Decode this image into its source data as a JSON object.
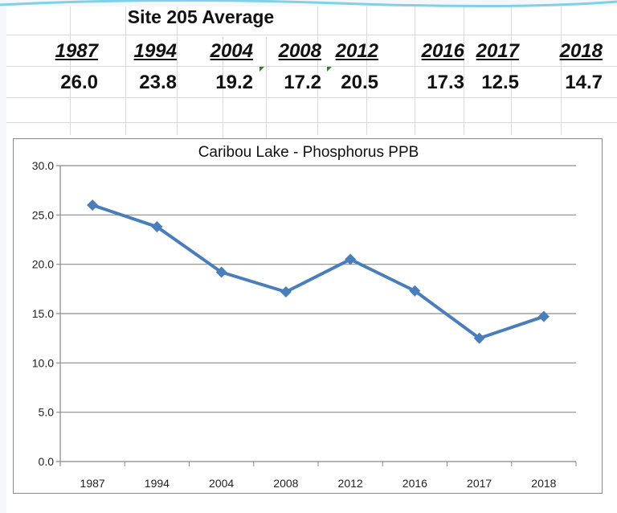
{
  "table": {
    "title": "Site 205 Average",
    "years": [
      "1987",
      "1994",
      "2004",
      "2008",
      "2012",
      "2016",
      "2017",
      "2018"
    ],
    "values": [
      "26.0",
      "23.8",
      "19.2",
      "17.2",
      "20.5",
      "17.3",
      "12.5",
      "14.7"
    ]
  },
  "chart_data": {
    "type": "line",
    "title": "Caribou Lake - Phosphorus PPB",
    "categories": [
      "1987",
      "1994",
      "2004",
      "2008",
      "2012",
      "2016",
      "2017",
      "2018"
    ],
    "values": [
      26.0,
      23.8,
      19.2,
      17.2,
      20.5,
      17.3,
      12.5,
      14.7
    ],
    "xlabel": "",
    "ylabel": "",
    "ylim": [
      0,
      30
    ],
    "yticks": [
      "0.0",
      "5.0",
      "10.0",
      "15.0",
      "20.0",
      "25.0",
      "30.0"
    ],
    "grid": true,
    "legend": "none",
    "marker": "diamond",
    "line_color": "#4a7ebb"
  }
}
